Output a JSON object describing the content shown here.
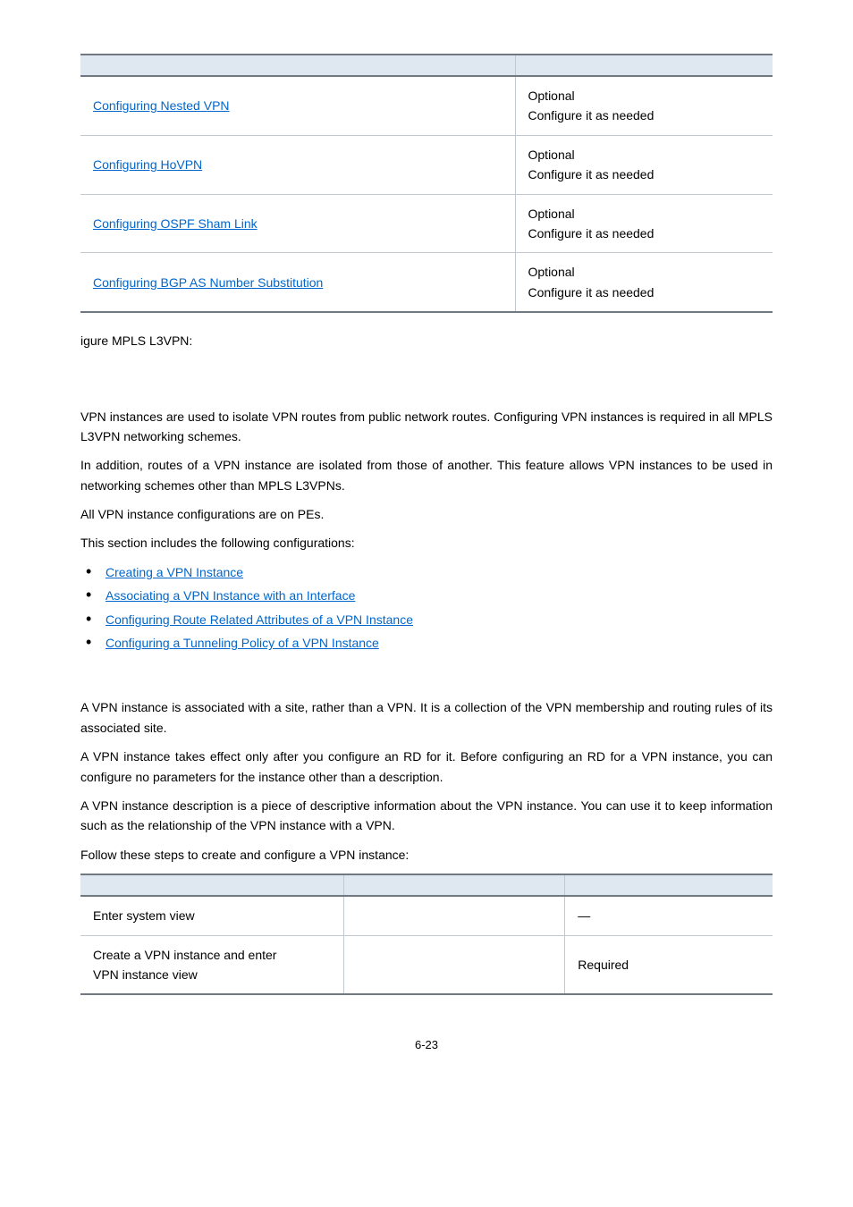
{
  "table1": {
    "rows": [
      {
        "link": "Configuring Nested VPN",
        "l1": "Optional",
        "l2": "Configure it as needed"
      },
      {
        "link": "Configuring HoVPN",
        "l1": "Optional",
        "l2": "Configure it as needed"
      },
      {
        "link": "Configuring OSPF Sham Link",
        "l1": "Optional",
        "l2": "Configure it as needed"
      },
      {
        "link": "Configuring BGP AS Number Substitution",
        "l1": "Optional",
        "l2": "Configure it as needed"
      }
    ]
  },
  "txt": {
    "igure": "igure MPLS L3VPN:",
    "p1": "VPN instances are used to isolate VPN routes from public network routes. Configuring VPN instances is required in all MPLS L3VPN networking schemes.",
    "p2": "In addition, routes of a VPN instance are isolated from those of another. This feature allows VPN instances to be used in networking schemes other than MPLS L3VPNs.",
    "p3": "All VPN instance configurations are on PEs.",
    "p4": "This section includes the following configurations:",
    "b1": "Creating a VPN Instance",
    "b2": "Associating a VPN Instance with an Interface",
    "b3": "Configuring Route Related Attributes of a VPN Instance",
    "b4": "Configuring a Tunneling Policy of a VPN Instance",
    "p5": "A VPN instance is associated with a site, rather than a VPN. It is a collection of the VPN membership and routing rules of its associated site.",
    "p6": "A VPN instance takes effect only after you configure an RD for it. Before configuring an RD for a VPN instance, you can configure no parameters for the instance other than a description.",
    "p7": "A VPN instance description is a piece of descriptive information about the VPN instance. You can use it to keep information such as the relationship of the VPN instance with a VPN.",
    "p8": "Follow these steps to create and configure a VPN instance:"
  },
  "table2": {
    "rows": [
      {
        "c1": "Enter system view",
        "c2": "",
        "c3": "—"
      },
      {
        "c1a": "Create a VPN instance and enter",
        "c1b": "VPN instance view",
        "c2": "",
        "c3": "Required"
      }
    ]
  },
  "pagenum": "6-23"
}
